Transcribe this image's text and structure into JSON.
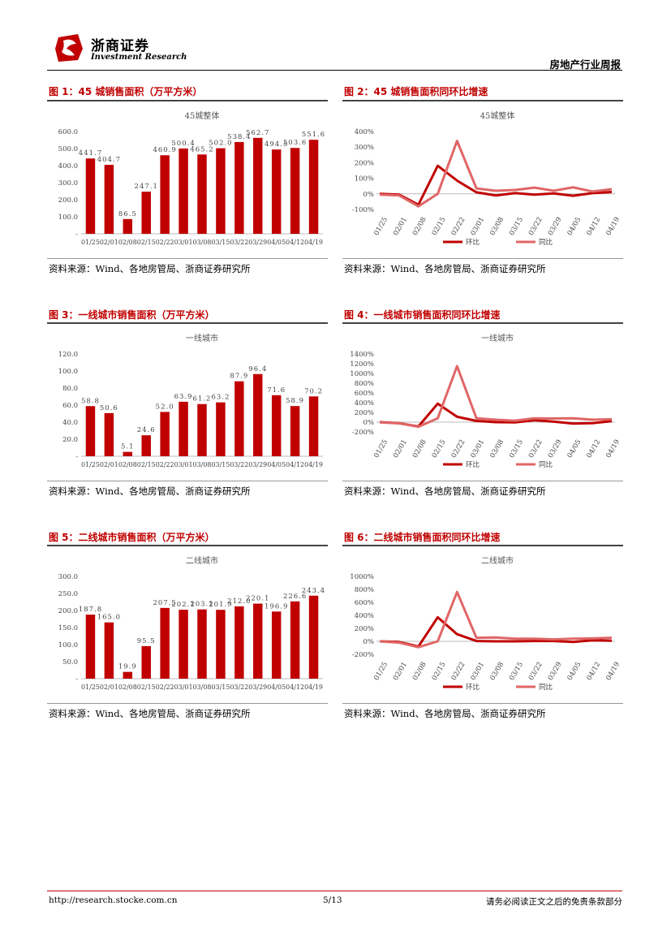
{
  "header": {
    "brand_cn": "浙商证券",
    "brand_en": "Investment Research",
    "report_type": "房地产行业周报"
  },
  "source_note": "资料来源：Wind、各地房管局、浙商证券研究所",
  "figures": [
    {
      "title": "图 1：45 城销售面积（万平方米）"
    },
    {
      "title": "图 2：45 城销售面积同环比增速"
    },
    {
      "title": "图 3：一线城市销售面积（万平方米）"
    },
    {
      "title": "图 4：一线城市销售面积同环比增速"
    },
    {
      "title": "图 5：二线城市销售面积（万平方米）"
    },
    {
      "title": "图 6：二线城市销售面积同环比增速"
    }
  ],
  "chart_data": [
    {
      "type": "bar",
      "title": "45城整体",
      "categories": [
        "01/25",
        "02/01",
        "02/08",
        "02/15",
        "02/22",
        "03/01",
        "03/08",
        "03/15",
        "03/22",
        "03/29",
        "04/05",
        "04/12",
        "04/19"
      ],
      "values": [
        441.7,
        404.7,
        86.5,
        247.1,
        460.9,
        500.4,
        465.2,
        502.0,
        538.4,
        562.7,
        494.5,
        503.6,
        551.6
      ],
      "value_labels": [
        "441.7",
        "404.7",
        "86.5",
        "247.1",
        "460.9",
        "500.4",
        "465.2",
        "502.0",
        "538.4",
        "562.7",
        "494.5",
        "503.6",
        "551.6"
      ],
      "yticks": [
        "600.0",
        "500.0",
        "400.0",
        "300.0",
        "200.0",
        "100.0",
        "-"
      ],
      "ylim": [
        0,
        600
      ],
      "color": "#c00000"
    },
    {
      "type": "line",
      "title": "45城整体",
      "x": [
        "01/25",
        "02/01",
        "02/08",
        "02/15",
        "02/22",
        "03/01",
        "03/08",
        "03/15",
        "03/22",
        "03/29",
        "04/05",
        "04/12",
        "04/19"
      ],
      "series": [
        {
          "name": "环比",
          "color": "#c00000",
          "values": [
            0,
            -5,
            -70,
            180,
            85,
            10,
            -10,
            5,
            -5,
            3,
            -12,
            5,
            12
          ]
        },
        {
          "name": "同比",
          "color": "#e06666",
          "values": [
            -5,
            -10,
            -80,
            0,
            340,
            35,
            20,
            25,
            40,
            20,
            42,
            15,
            30
          ]
        }
      ],
      "yticks": [
        "400%",
        "300%",
        "200%",
        "100%",
        "0%",
        "-100%"
      ],
      "ylim": [
        -100,
        400
      ]
    },
    {
      "type": "bar",
      "title": "一线城市",
      "categories": [
        "01/25",
        "02/01",
        "02/08",
        "02/15",
        "02/22",
        "03/01",
        "03/08",
        "03/15",
        "03/22",
        "03/29",
        "04/05",
        "04/12",
        "04/19"
      ],
      "values": [
        58.8,
        50.6,
        5.1,
        24.6,
        52.0,
        63.9,
        61.2,
        63.2,
        87.9,
        96.4,
        71.6,
        58.9,
        70.2
      ],
      "value_labels": [
        "58.8",
        "50.6",
        "5.1",
        "24.6",
        "52.0",
        "63.9",
        "61.2",
        "63.2",
        "87.9",
        "96.4",
        "71.6",
        "58.9",
        "70.2"
      ],
      "yticks": [
        "120.0",
        "100.0",
        "80.0",
        "60.0",
        "40.0",
        "20.0",
        "-"
      ],
      "ylim": [
        0,
        120
      ],
      "color": "#c00000"
    },
    {
      "type": "line",
      "title": "一线城市",
      "x": [
        "01/25",
        "02/01",
        "02/08",
        "02/15",
        "02/22",
        "03/01",
        "03/08",
        "03/15",
        "03/22",
        "03/29",
        "04/05",
        "04/12",
        "04/19"
      ],
      "series": [
        {
          "name": "环比",
          "color": "#c00000",
          "values": [
            0,
            -20,
            -90,
            380,
            110,
            25,
            0,
            -5,
            40,
            10,
            -30,
            -20,
            20
          ]
        },
        {
          "name": "同比",
          "color": "#e06666",
          "values": [
            -5,
            -25,
            -95,
            80,
            1150,
            80,
            50,
            30,
            80,
            75,
            80,
            50,
            60
          ]
        }
      ],
      "yticks": [
        "1400%",
        "1200%",
        "1000%",
        "800%",
        "600%",
        "400%",
        "200%",
        "0%",
        "-200%"
      ],
      "ylim": [
        -200,
        1400
      ]
    },
    {
      "type": "bar",
      "title": "二线城市",
      "categories": [
        "01/25",
        "02/01",
        "02/08",
        "02/15",
        "02/22",
        "03/01",
        "03/08",
        "03/15",
        "03/22",
        "03/29",
        "04/05",
        "04/12",
        "04/19"
      ],
      "values": [
        187.8,
        165.0,
        19.9,
        95.5,
        207.5,
        202.1,
        203.1,
        201.9,
        212.0,
        220.1,
        196.9,
        226.6,
        243.4
      ],
      "value_labels": [
        "187.8",
        "165.0",
        "19.9",
        "95.5",
        "207.5",
        "202.1",
        "203.1",
        "201.9",
        "212.0",
        "220.1",
        "196.9",
        "226.6",
        "243.4"
      ],
      "yticks": [
        "300.0",
        "250.0",
        "200.0",
        "150.0",
        "100.0",
        "50.0",
        "-"
      ],
      "ylim": [
        0,
        300
      ],
      "color": "#c00000"
    },
    {
      "type": "line",
      "title": "二线城市",
      "x": [
        "01/25",
        "02/01",
        "02/08",
        "02/15",
        "02/22",
        "03/01",
        "03/08",
        "03/15",
        "03/22",
        "03/29",
        "04/05",
        "04/12",
        "04/19"
      ],
      "series": [
        {
          "name": "环比",
          "color": "#c00000",
          "values": [
            0,
            -10,
            -80,
            370,
            110,
            5,
            0,
            0,
            5,
            5,
            -10,
            15,
            10
          ]
        },
        {
          "name": "同比",
          "color": "#e06666",
          "values": [
            0,
            -20,
            -90,
            0,
            760,
            55,
            60,
            40,
            40,
            30,
            40,
            45,
            55
          ]
        }
      ],
      "yticks": [
        "1000%",
        "800%",
        "600%",
        "400%",
        "200%",
        "0%",
        "-200%"
      ],
      "ylim": [
        -200,
        1000
      ]
    }
  ],
  "footer": {
    "url": "http://research.stocke.com.cn",
    "page": "5/13",
    "disclaimer": "请务必阅读正文之后的免责条款部分"
  }
}
